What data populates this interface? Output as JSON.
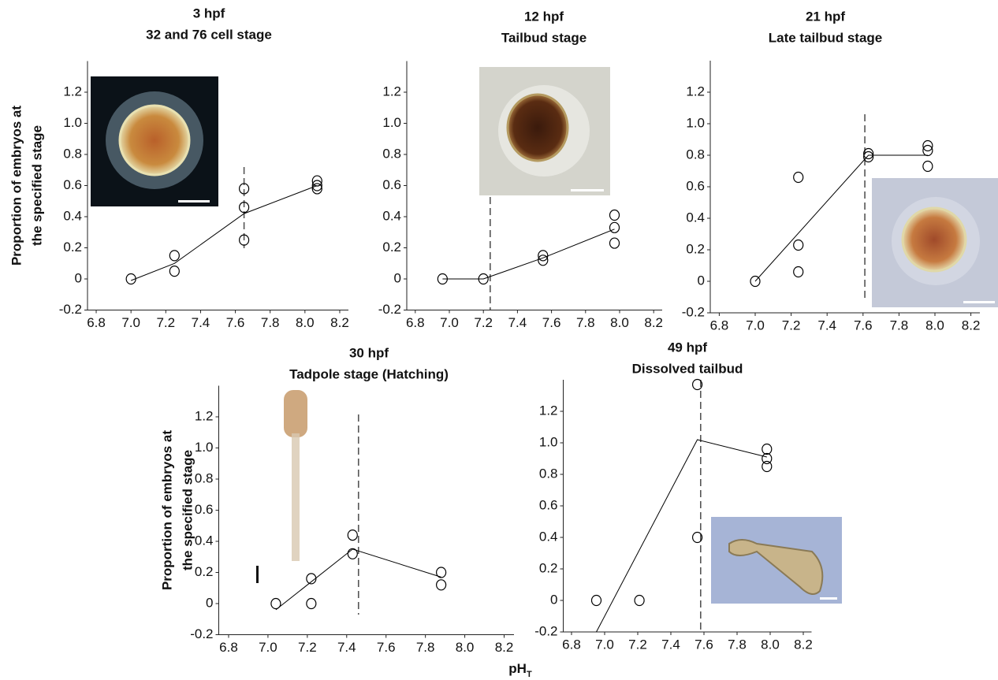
{
  "chart_data": [
    {
      "type": "scatter",
      "title": "3 hpf",
      "subtitle": "32 and 76 cell stage",
      "ylabel": [
        "Proportion of embryos at",
        "the specified stage"
      ],
      "xlim": [
        6.75,
        8.25
      ],
      "ylim": [
        -0.2,
        1.4
      ],
      "xticks": [
        6.8,
        {
          "value": 7,
          "label": "7.0"
        },
        7.2,
        7.4,
        7.6,
        7.8,
        {
          "value": 8,
          "label": "8.0"
        },
        8.2
      ],
      "yticks": [
        -0.2,
        0,
        0.2,
        0.4,
        0.6,
        0.8,
        {
          "value": 1,
          "label": "1.0"
        },
        1.2
      ],
      "color": "#000000",
      "points": {
        "x": [
          7.0,
          7.25,
          7.25,
          7.65,
          7.65,
          7.65,
          8.07,
          8.07,
          8.07
        ],
        "values": [
          0,
          0.15,
          0.05,
          0.58,
          0.46,
          0.25,
          0.63,
          0.6,
          0.58
        ]
      },
      "line": {
        "x": [
          7.0,
          7.25,
          7.65,
          8.07
        ],
        "values": [
          -0.01,
          0.1,
          0.42,
          0.6
        ]
      },
      "vline": 7.65
    },
    {
      "type": "scatter",
      "title": "12 hpf",
      "subtitle": "Tailbud stage",
      "xlim": [
        6.75,
        8.25
      ],
      "ylim": [
        -0.2,
        1.4
      ],
      "xticks": [
        6.8,
        {
          "value": 7,
          "label": "7.0"
        },
        7.2,
        7.4,
        7.6,
        7.8,
        {
          "value": 8,
          "label": "8.0"
        },
        8.2
      ],
      "yticks": [
        -0.2,
        0,
        0.2,
        0.4,
        0.6,
        0.8,
        {
          "value": 1,
          "label": "1.0"
        },
        1.2
      ],
      "color": "#000000",
      "points": {
        "x": [
          6.96,
          7.2,
          7.55,
          7.55,
          7.97,
          7.97,
          7.97
        ],
        "values": [
          0,
          0,
          0.15,
          0.12,
          0.41,
          0.33,
          0.23
        ]
      },
      "line": {
        "x": [
          6.96,
          7.2,
          7.55,
          7.97
        ],
        "values": [
          0,
          0,
          0.135,
          0.32
        ]
      },
      "vline": 7.24
    },
    {
      "type": "scatter",
      "title": "21 hpf",
      "subtitle": "Late tailbud stage",
      "xlim": [
        6.75,
        8.25
      ],
      "ylim": [
        -0.2,
        1.4
      ],
      "xticks": [
        6.8,
        {
          "value": 7,
          "label": "7.0"
        },
        7.2,
        7.4,
        7.6,
        7.8,
        {
          "value": 8,
          "label": "8.0"
        },
        8.2
      ],
      "yticks": [
        -0.2,
        0,
        0.2,
        0.4,
        0.6,
        0.8,
        {
          "value": 1,
          "label": "1.0"
        },
        1.2
      ],
      "color": "#000000",
      "points": {
        "x": [
          7.0,
          7.24,
          7.24,
          7.24,
          7.63,
          7.63,
          7.96,
          7.96,
          7.96
        ],
        "values": [
          0,
          0.66,
          0.23,
          0.06,
          0.81,
          0.79,
          0.86,
          0.83,
          0.73
        ]
      },
      "line": {
        "x": [
          7.0,
          7.63,
          7.96
        ],
        "values": [
          0,
          0.8,
          0.8
        ]
      },
      "vline": 7.61
    },
    {
      "type": "scatter",
      "title": "30 hpf",
      "subtitle": "Tadpole stage (Hatching)",
      "ylabel": [
        "Proportion of embryos at",
        "the specified stage"
      ],
      "xlim": [
        6.75,
        8.25
      ],
      "ylim": [
        -0.2,
        1.4
      ],
      "xticks": [
        6.8,
        {
          "value": 7,
          "label": "7.0"
        },
        7.2,
        7.4,
        7.6,
        7.8,
        {
          "value": 8,
          "label": "8.0"
        },
        8.2
      ],
      "yticks": [
        -0.2,
        0,
        0.2,
        0.4,
        0.6,
        0.8,
        {
          "value": 1,
          "label": "1.0"
        },
        1.2
      ],
      "color": "#000000",
      "points": {
        "x": [
          7.04,
          7.22,
          7.22,
          7.43,
          7.43,
          7.88,
          7.88
        ],
        "values": [
          0,
          0.16,
          0,
          0.44,
          0.32,
          0.2,
          0.12
        ]
      },
      "line": {
        "x": [
          7.04,
          7.43,
          7.88
        ],
        "values": [
          -0.04,
          0.35,
          0.17
        ]
      },
      "vline": 7.46
    },
    {
      "type": "scatter",
      "title": "49 hpf",
      "subtitle": "Dissolved tailbud",
      "xlim": [
        6.75,
        8.25
      ],
      "ylim": [
        -0.2,
        1.4
      ],
      "xticks": [
        6.8,
        {
          "value": 7,
          "label": "7.0"
        },
        7.2,
        7.4,
        7.6,
        7.8,
        {
          "value": 8,
          "label": "8.0"
        },
        8.2
      ],
      "yticks": [
        -0.2,
        0,
        0.2,
        0.4,
        0.6,
        0.8,
        {
          "value": 1,
          "label": "1.0"
        },
        1.2
      ],
      "color": "#000000",
      "points": {
        "x": [
          6.95,
          7.21,
          7.56,
          7.56,
          7.98,
          7.98,
          7.98
        ],
        "values": [
          0,
          0,
          1.37,
          0.4,
          0.96,
          0.9,
          0.85
        ]
      },
      "line": {
        "x": [
          6.95,
          7.56,
          7.98
        ],
        "values": [
          -0.2,
          1.02,
          0.91
        ]
      },
      "vline": 7.58
    }
  ],
  "xlabel": "pH",
  "xlabel_sub": "T"
}
